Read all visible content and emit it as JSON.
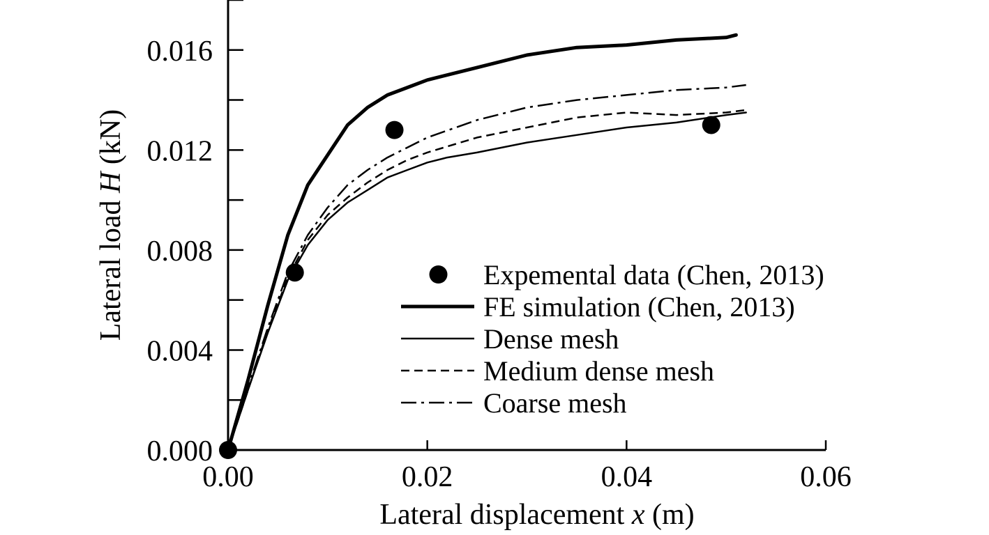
{
  "chart_data": {
    "type": "line",
    "xlabel": {
      "prefix": "Lateral displacement ",
      "var": "x",
      "suffix": " (m)"
    },
    "ylabel": {
      "prefix": "Lateral load ",
      "var": "H",
      "suffix": " (kN)"
    },
    "xlim": [
      0,
      0.06
    ],
    "ylim": [
      0,
      0.018
    ],
    "xticks": [
      0,
      0.02,
      0.04,
      0.06
    ],
    "xtick_labels": [
      "0.00",
      "0.02",
      "0.04",
      "0.06"
    ],
    "yticks": [
      0,
      0.004,
      0.008,
      0.012,
      0.016
    ],
    "ytick_labels": [
      "0.000",
      "0.004",
      "0.008",
      "0.012",
      "0.016"
    ],
    "y_minor_step": 0.002,
    "grid": false,
    "legend_position": "lower-right",
    "series": [
      {
        "name": "Expemental data (Chen, 2013)",
        "style": "marker",
        "x": [
          0.0,
          0.0067,
          0.0167,
          0.0485
        ],
        "y": [
          0.0,
          0.0071,
          0.0128,
          0.013
        ]
      },
      {
        "name": "FE simulation (Chen, 2013)",
        "style": "thick",
        "x": [
          0,
          0.002,
          0.004,
          0.006,
          0.008,
          0.01,
          0.012,
          0.014,
          0.016,
          0.018,
          0.02,
          0.025,
          0.03,
          0.035,
          0.04,
          0.045,
          0.05,
          0.051
        ],
        "y": [
          0,
          0.0028,
          0.0058,
          0.0086,
          0.0106,
          0.0118,
          0.013,
          0.0137,
          0.0142,
          0.0145,
          0.0148,
          0.0153,
          0.0158,
          0.0161,
          0.0162,
          0.0164,
          0.0165,
          0.0166
        ]
      },
      {
        "name": "Dense mesh",
        "style": "solid",
        "x": [
          0,
          0.002,
          0.004,
          0.006,
          0.008,
          0.01,
          0.012,
          0.014,
          0.016,
          0.018,
          0.02,
          0.022,
          0.025,
          0.03,
          0.035,
          0.04,
          0.045,
          0.05,
          0.052
        ],
        "y": [
          0,
          0.0024,
          0.0047,
          0.0068,
          0.0082,
          0.0092,
          0.0099,
          0.0104,
          0.0109,
          0.0112,
          0.0115,
          0.0117,
          0.0119,
          0.0123,
          0.0126,
          0.0129,
          0.0131,
          0.0134,
          0.0135
        ]
      },
      {
        "name": "Medium dense mesh",
        "style": "dashed",
        "x": [
          0,
          0.002,
          0.004,
          0.006,
          0.008,
          0.01,
          0.012,
          0.014,
          0.016,
          0.018,
          0.02,
          0.025,
          0.03,
          0.035,
          0.04,
          0.045,
          0.05,
          0.052
        ],
        "y": [
          0,
          0.0024,
          0.0048,
          0.0069,
          0.0084,
          0.0094,
          0.0101,
          0.0107,
          0.0112,
          0.0116,
          0.0119,
          0.0125,
          0.0129,
          0.0133,
          0.0135,
          0.0134,
          0.0135,
          0.0136
        ]
      },
      {
        "name": "Coarse mesh",
        "style": "dashdot",
        "x": [
          0,
          0.002,
          0.004,
          0.006,
          0.008,
          0.01,
          0.012,
          0.014,
          0.016,
          0.018,
          0.02,
          0.025,
          0.03,
          0.035,
          0.04,
          0.045,
          0.05,
          0.052
        ],
        "y": [
          0,
          0.0025,
          0.0049,
          0.0071,
          0.0086,
          0.0097,
          0.0106,
          0.0112,
          0.0117,
          0.0121,
          0.0125,
          0.0132,
          0.0137,
          0.014,
          0.0142,
          0.0144,
          0.0145,
          0.0146
        ]
      }
    ]
  }
}
